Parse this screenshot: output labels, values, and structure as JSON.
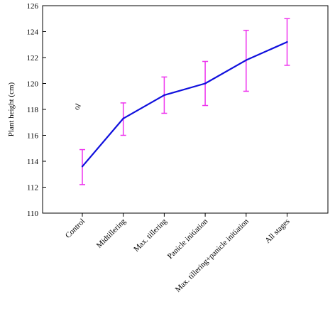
{
  "chart_data": {
    "type": "line",
    "title": "",
    "xlabel": "",
    "ylabel": "Plant height (cm)",
    "ylim": [
      110,
      126
    ],
    "yticks": [
      110,
      112,
      114,
      116,
      118,
      120,
      122,
      124,
      126
    ],
    "categories": [
      "Control",
      "Midtillering",
      "Max. tillering",
      "Panicle initiation",
      "Max. tillering+panicle initiation",
      "All stages"
    ],
    "series": [
      {
        "values": [
          113.6,
          117.3,
          119.1,
          120.0,
          121.8,
          123.2
        ],
        "error_low": [
          112.2,
          116.0,
          117.7,
          118.3,
          119.4,
          121.4
        ],
        "error_high": [
          114.9,
          118.5,
          120.5,
          121.7,
          124.1,
          125.0
        ],
        "color": "#1010dd",
        "error_color": "#ee33ee"
      }
    ],
    "grid": false,
    "legend": "none",
    "stray_label": "ol"
  }
}
